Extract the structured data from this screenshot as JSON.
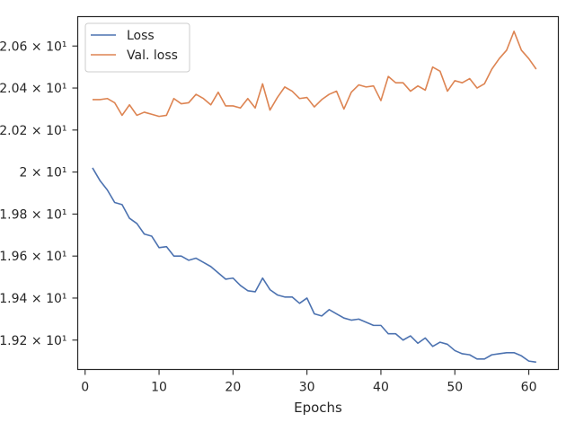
{
  "chart_data": {
    "type": "line",
    "title": "",
    "xlabel": "Epochs",
    "ylabel": "",
    "xlim": [
      -1,
      64
    ],
    "ylim": [
      19.06,
      20.74
    ],
    "x_ticks": [
      0,
      10,
      20,
      30,
      40,
      50,
      60
    ],
    "x_tick_labels": [
      "0",
      "10",
      "20",
      "30",
      "40",
      "50",
      "60"
    ],
    "y_ticks": [
      19.2,
      19.4,
      19.6,
      19.8,
      20.0,
      20.2,
      20.4,
      20.6
    ],
    "y_tick_labels": [
      "1.92 × 10¹",
      "1.94 × 10¹",
      "1.96 × 10¹",
      "1.98 × 10¹",
      "2 × 10¹",
      "2.02 × 10¹",
      "2.04 × 10¹",
      "2.06 × 10¹"
    ],
    "grid": false,
    "legend_position": "upper-left",
    "x": [
      1,
      2,
      3,
      4,
      5,
      6,
      7,
      8,
      9,
      10,
      11,
      12,
      13,
      14,
      15,
      16,
      17,
      18,
      19,
      20,
      21,
      22,
      23,
      24,
      25,
      26,
      27,
      28,
      29,
      30,
      31,
      32,
      33,
      34,
      35,
      36,
      37,
      38,
      39,
      40,
      41,
      42,
      43,
      44,
      45,
      46,
      47,
      48,
      49,
      50,
      51,
      52,
      53,
      54,
      55,
      56,
      57,
      58,
      59,
      60,
      61
    ],
    "series": [
      {
        "name": "Loss",
        "color": "#4c72b0",
        "values": [
          20.02,
          19.96,
          19.915,
          19.855,
          19.845,
          19.78,
          19.755,
          19.705,
          19.695,
          19.64,
          19.645,
          19.6,
          19.6,
          19.58,
          19.59,
          19.57,
          19.55,
          19.52,
          19.49,
          19.495,
          19.46,
          19.435,
          19.43,
          19.495,
          19.44,
          19.415,
          19.405,
          19.405,
          19.375,
          19.4,
          19.325,
          19.315,
          19.345,
          19.325,
          19.305,
          19.295,
          19.3,
          19.285,
          19.27,
          19.27,
          19.23,
          19.23,
          19.2,
          19.22,
          19.185,
          19.21,
          19.17,
          19.19,
          19.18,
          19.15,
          19.135,
          19.13,
          19.11,
          19.11,
          19.13,
          19.135,
          19.14,
          19.14,
          19.125,
          19.1,
          19.095
        ]
      },
      {
        "name": "Val. loss",
        "color": "#dd8452",
        "values": [
          20.345,
          20.345,
          20.35,
          20.33,
          20.27,
          20.32,
          20.27,
          20.285,
          20.275,
          20.265,
          20.27,
          20.35,
          20.325,
          20.33,
          20.37,
          20.35,
          20.32,
          20.38,
          20.315,
          20.315,
          20.305,
          20.35,
          20.305,
          20.42,
          20.295,
          20.355,
          20.405,
          20.385,
          20.35,
          20.355,
          20.31,
          20.345,
          20.37,
          20.385,
          20.3,
          20.38,
          20.415,
          20.405,
          20.41,
          20.34,
          20.455,
          20.425,
          20.425,
          20.385,
          20.41,
          20.39,
          20.5,
          20.48,
          20.385,
          20.435,
          20.425,
          20.445,
          20.4,
          20.42,
          20.49,
          20.54,
          20.58,
          20.67,
          20.58,
          20.54,
          20.49
        ]
      }
    ]
  }
}
